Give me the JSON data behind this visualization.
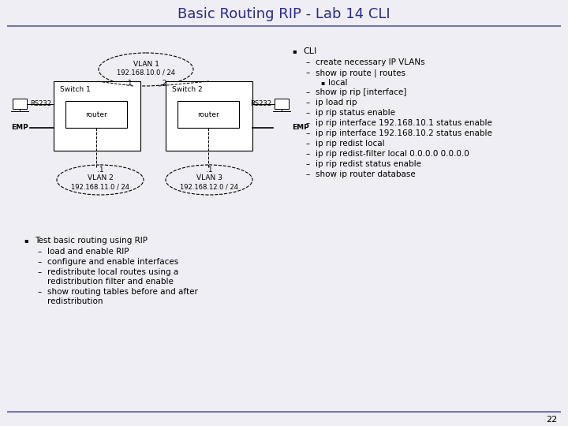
{
  "title": "Basic Routing RIP - Lab 14 CLI",
  "title_color": "#2b2b8c",
  "title_fontsize": 13,
  "bg_color": "#eeeef4",
  "vlan1_line1": "VLAN 1",
  "vlan1_line2": "192.168.10.0 / 24",
  "vlan1_dot1": ".1",
  "vlan1_dot2": ".2",
  "vlan2_line1": "VLAN 2",
  "vlan2_line2": "192.168.11.0 / 24",
  "vlan2_dot1": ".1",
  "vlan3_line1": "VLAN 3",
  "vlan3_line2": "192.168.12.0 / 24",
  "vlan3_dot1": ".1",
  "switch1_label": "Switch 1",
  "switch2_label": "Switch 2",
  "router_label": "router",
  "rs232_label": "RS232",
  "emp_label": "EMP",
  "bullet_text_left": "Test basic routing using RIP",
  "bullet_items_left_line1": [
    "load and enable RIP",
    "configure and enable interfaces",
    "redistribute local routes using a",
    "show routing tables before and after"
  ],
  "bullet_items_left_line2": [
    "",
    "",
    "redistribution filter and enable",
    "redistribution"
  ],
  "bullet_text_right": "CLI",
  "bullet_items_right": [
    "create necessary IP VLANs",
    "show ip route | routes",
    "show ip rip [interface]",
    "ip load rip",
    "ip rip status enable",
    "ip rip interface 192.168.10.1 status enable",
    "ip rip interface 192.168.10.2 status enable",
    "ip rip redist local",
    "ip rip redist-filter local 0.0.0.0 0.0.0.0",
    "ip rip redist status enable",
    "show ip router database"
  ],
  "sub_bullet_right": "local",
  "page_number": "22",
  "line_color": "#7777aa",
  "diag_text_fs": 6.5,
  "body_fs": 7.5
}
